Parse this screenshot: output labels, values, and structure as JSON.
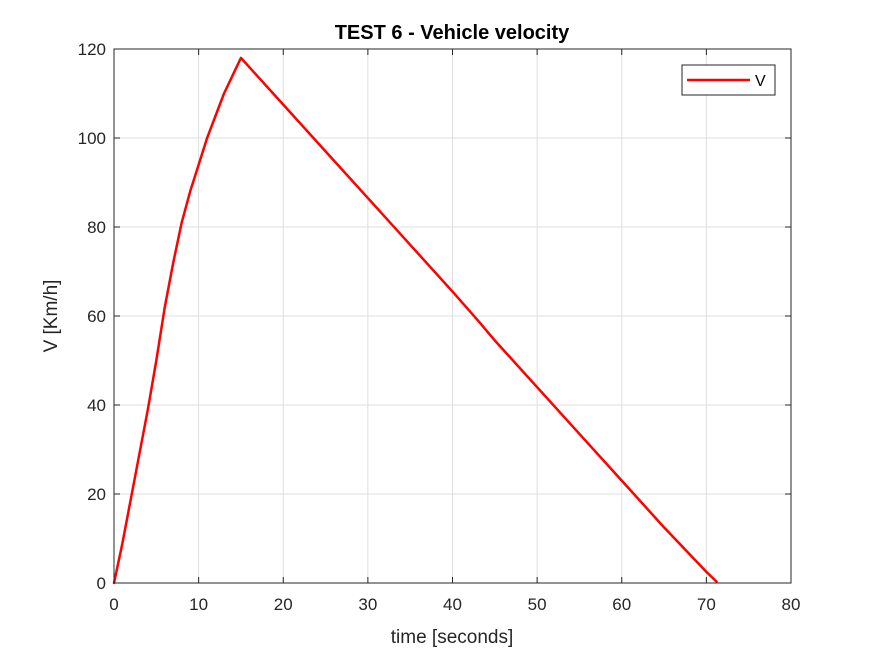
{
  "chart_data": {
    "type": "line",
    "title": "TEST 6 - Vehicle velocity",
    "xlabel": "time [seconds]",
    "ylabel": "V [Km/h]",
    "xlim": [
      0,
      80
    ],
    "ylim": [
      0,
      120
    ],
    "x_ticks": [
      "0",
      "10",
      "20",
      "30",
      "40",
      "50",
      "60",
      "70",
      "80"
    ],
    "y_ticks": [
      "0",
      "20",
      "40",
      "60",
      "80",
      "100",
      "120"
    ],
    "grid": true,
    "legend_position": "top-right",
    "series": [
      {
        "name": "V",
        "color": "#ff0000",
        "x": [
          0,
          1,
          2,
          3,
          4,
          5,
          6,
          7,
          8,
          9,
          10,
          11,
          12,
          13,
          14,
          15,
          20,
          25,
          30,
          35,
          40,
          43,
          45,
          50,
          55,
          60,
          65,
          70,
          71.2
        ],
        "y": [
          0,
          9,
          19,
          29,
          39,
          50,
          62,
          72,
          81,
          88,
          94,
          100,
          105,
          110,
          114,
          118,
          107.5,
          97,
          86.5,
          76,
          65.5,
          59,
          54.5,
          44,
          33.5,
          23,
          12.5,
          2.5,
          0.3
        ]
      }
    ]
  }
}
